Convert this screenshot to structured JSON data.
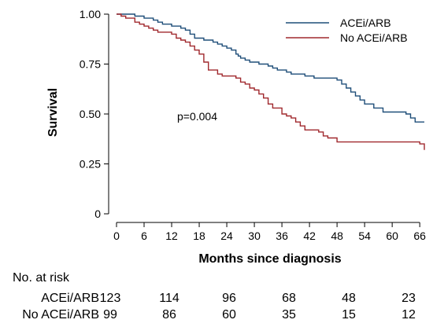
{
  "chart_data": {
    "type": "line",
    "subtype": "kaplan-meier-step",
    "title": "",
    "xlabel": "Months since diagnosis",
    "ylabel": "Survival",
    "xlim": [
      0,
      67
    ],
    "ylim": [
      0,
      1
    ],
    "xticks": [
      0,
      6,
      12,
      18,
      24,
      30,
      36,
      42,
      48,
      54,
      60,
      66
    ],
    "yticks": [
      0,
      0.25,
      0.5,
      0.75,
      1
    ],
    "ytick_labels": [
      "0",
      "0.25",
      "0.50",
      "0.75",
      "1.00"
    ],
    "grid": false,
    "legend": "top-right",
    "annotation": "p=0.004",
    "series": [
      {
        "name": "ACEi/ARB",
        "color": "#1f4e79",
        "x": [
          0,
          2,
          4,
          5,
          6,
          7,
          8,
          9,
          10,
          12,
          14,
          15,
          16,
          17,
          19,
          21,
          22,
          23,
          24,
          25,
          26,
          26.5,
          27,
          28,
          29,
          30,
          31,
          32,
          33,
          34,
          35,
          36,
          37,
          38,
          39,
          41,
          43,
          44,
          48,
          49,
          50,
          51,
          52,
          53,
          54,
          56,
          58,
          60,
          63,
          64,
          65,
          66,
          67
        ],
        "y": [
          1.0,
          1.0,
          0.99,
          0.99,
          0.98,
          0.98,
          0.97,
          0.96,
          0.95,
          0.94,
          0.93,
          0.92,
          0.9,
          0.88,
          0.87,
          0.86,
          0.85,
          0.84,
          0.83,
          0.82,
          0.8,
          0.79,
          0.78,
          0.77,
          0.76,
          0.76,
          0.75,
          0.75,
          0.74,
          0.73,
          0.72,
          0.72,
          0.71,
          0.7,
          0.7,
          0.69,
          0.68,
          0.68,
          0.67,
          0.65,
          0.63,
          0.61,
          0.59,
          0.57,
          0.55,
          0.53,
          0.51,
          0.51,
          0.5,
          0.48,
          0.46,
          0.46,
          0.46
        ]
      },
      {
        "name": "No ACEi/ARB",
        "color": "#a0282d",
        "x": [
          0,
          1,
          2,
          4,
          5,
          6,
          7,
          8,
          9,
          12,
          13,
          14,
          15,
          16,
          17,
          18,
          19,
          20,
          22,
          23,
          26,
          27,
          28,
          29,
          30,
          31,
          32,
          33,
          34,
          36,
          37,
          38,
          39,
          40,
          41,
          44,
          45,
          46,
          48,
          49,
          57,
          66,
          67
        ],
        "y": [
          1.0,
          0.99,
          0.98,
          0.96,
          0.95,
          0.94,
          0.93,
          0.92,
          0.91,
          0.9,
          0.88,
          0.87,
          0.86,
          0.84,
          0.82,
          0.8,
          0.76,
          0.72,
          0.7,
          0.69,
          0.68,
          0.66,
          0.65,
          0.63,
          0.62,
          0.6,
          0.58,
          0.55,
          0.53,
          0.5,
          0.49,
          0.48,
          0.46,
          0.44,
          0.42,
          0.41,
          0.39,
          0.38,
          0.36,
          0.36,
          0.36,
          0.35,
          0.32
        ]
      }
    ],
    "risk_table": {
      "heading": "No. at risk",
      "rows": [
        {
          "label": "ACEi/ARB",
          "values": [
            "123",
            "114",
            "96",
            "68",
            "48",
            "23"
          ]
        },
        {
          "label": "No ACEi/ARB",
          "values": [
            "99",
            "86",
            "60",
            "35",
            "15",
            "12"
          ]
        }
      ]
    }
  }
}
